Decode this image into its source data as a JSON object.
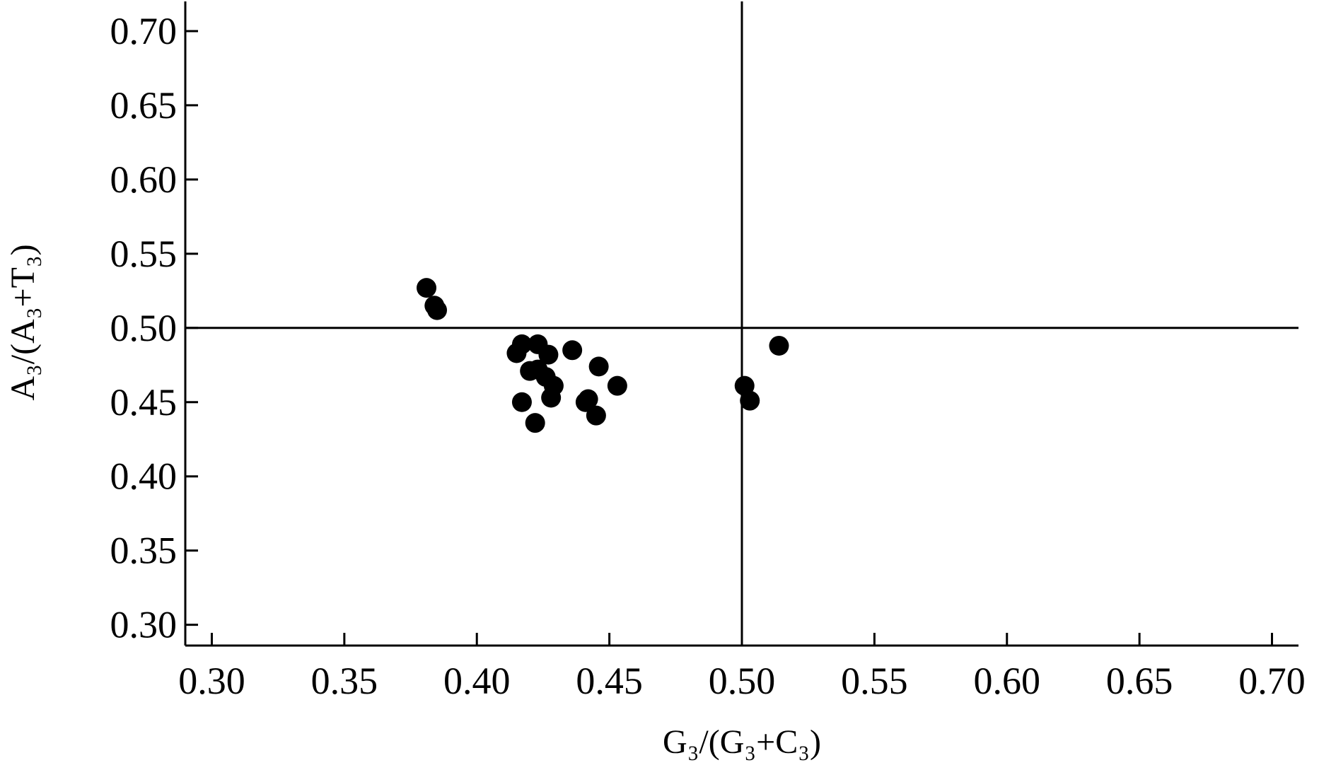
{
  "chart_data": {
    "type": "scatter",
    "x_label": "G₃/(G₃+C₃)",
    "y_label": "A₃/(A₃+T₃)",
    "x": [
      0.381,
      0.384,
      0.385,
      0.415,
      0.417,
      0.423,
      0.427,
      0.436,
      0.42,
      0.423,
      0.426,
      0.429,
      0.428,
      0.417,
      0.422,
      0.446,
      0.453,
      0.441,
      0.442,
      0.445,
      0.501,
      0.503,
      0.514
    ],
    "y": [
      0.527,
      0.515,
      0.512,
      0.483,
      0.489,
      0.489,
      0.482,
      0.485,
      0.471,
      0.472,
      0.467,
      0.461,
      0.453,
      0.45,
      0.436,
      0.474,
      0.461,
      0.45,
      0.452,
      0.441,
      0.461,
      0.451,
      0.488
    ],
    "color": "#000000",
    "xlim": [
      0.29,
      0.71
    ],
    "ylim": [
      0.286,
      0.72
    ],
    "xticks": [
      {
        "value": 0.3,
        "label": "0.30"
      },
      {
        "value": 0.35,
        "label": "0.35"
      },
      {
        "value": 0.4,
        "label": "0.40"
      },
      {
        "value": 0.45,
        "label": "0.45"
      },
      {
        "value": 0.5,
        "label": "0.50"
      },
      {
        "value": 0.55,
        "label": "0.55"
      },
      {
        "value": 0.6,
        "label": "0.60"
      },
      {
        "value": 0.65,
        "label": "0.65"
      },
      {
        "value": 0.7,
        "label": "0.70"
      }
    ],
    "yticks": [
      {
        "value": 0.3,
        "label": "0.30"
      },
      {
        "value": 0.35,
        "label": "0.35"
      },
      {
        "value": 0.4,
        "label": "0.40"
      },
      {
        "value": 0.45,
        "label": "0.45"
      },
      {
        "value": 0.5,
        "label": "0.50"
      },
      {
        "value": 0.55,
        "label": "0.55"
      },
      {
        "value": 0.6,
        "label": "0.60"
      },
      {
        "value": 0.65,
        "label": "0.65"
      },
      {
        "value": 0.7,
        "label": "0.70"
      }
    ],
    "vlines": [
      0.5
    ],
    "hlines": [
      0.5
    ]
  }
}
